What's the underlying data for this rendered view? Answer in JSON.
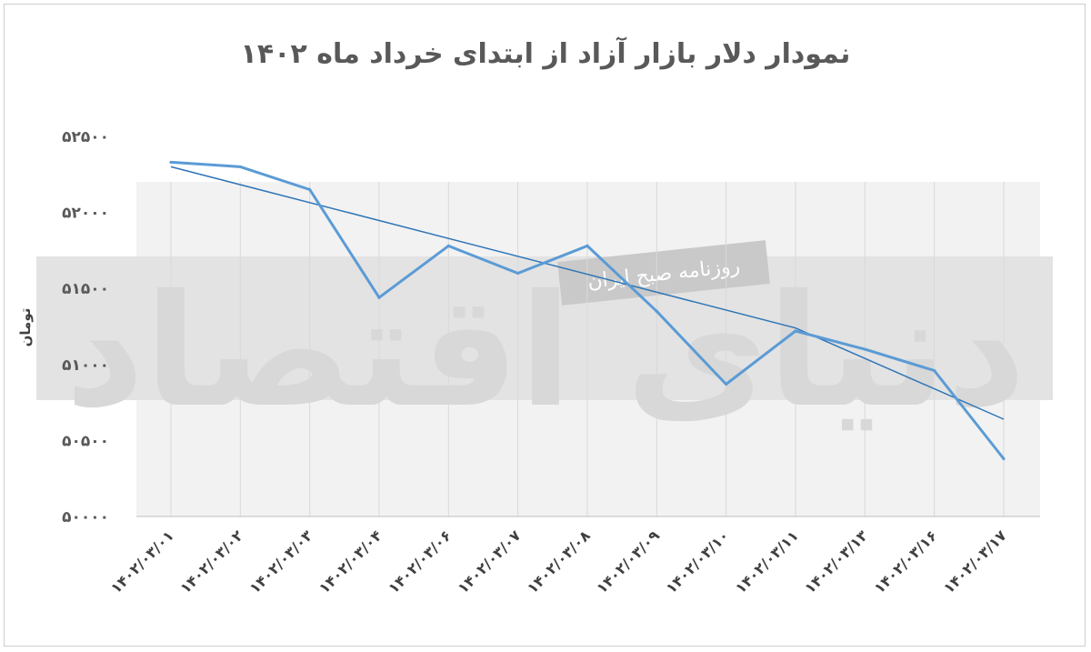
{
  "watermark": {
    "brand": "دنیای اقتصاد",
    "newspaper": "روزنامه صبح ایران"
  },
  "chart_data": {
    "type": "line",
    "title": "نمودار دلار بازار آزاد از ابتدای خرداد ماه ۱۴۰۲",
    "ylabel": "تومان",
    "xlabel": "",
    "categories": [
      "۱۴۰۲/۰۳/۰۱",
      "۱۴۰۲/۰۳/۰۲",
      "۱۴۰۲/۰۳/۰۳",
      "۱۴۰۲/۰۳/۰۴",
      "۱۴۰۲/۰۳/۰۶",
      "۱۴۰۲/۰۳/۰۷",
      "۱۴۰۲/۰۳/۰۸",
      "۱۴۰۲/۰۳/۰۹",
      "۱۴۰۲/۰۳/۱۰",
      "۱۴۰۲/۰۳/۱۱",
      "۱۴۰۲/۰۳/۱۳",
      "۱۴۰۲/۰۳/۱۶",
      "۱۴۰۲/۰۳/۱۷"
    ],
    "y_ticks": [
      50000,
      50500,
      51000,
      51500,
      52000,
      52500
    ],
    "y_tick_labels": [
      "۵۰۰۰۰",
      "۵۰۵۰۰",
      "۵۱۰۰۰",
      "۵۱۵۰۰",
      "۵۲۰۰۰",
      "۵۲۵۰۰"
    ],
    "ylim": [
      50000,
      52500
    ],
    "grid": true,
    "colors": {
      "series": "#5b9bd5",
      "trend": "#2e75b6",
      "grid": "#d9d9d9",
      "plot_band": "#f2f2f2"
    },
    "series": [
      {
        "values": [
          52330,
          52300,
          52150,
          51440,
          51780,
          51600,
          51780,
          51350,
          50870,
          51220,
          51100,
          50960,
          50380
        ]
      }
    ],
    "trendline": {
      "values": [
        52300,
        51240,
        50640
      ],
      "at": [
        0,
        9,
        12
      ]
    }
  }
}
